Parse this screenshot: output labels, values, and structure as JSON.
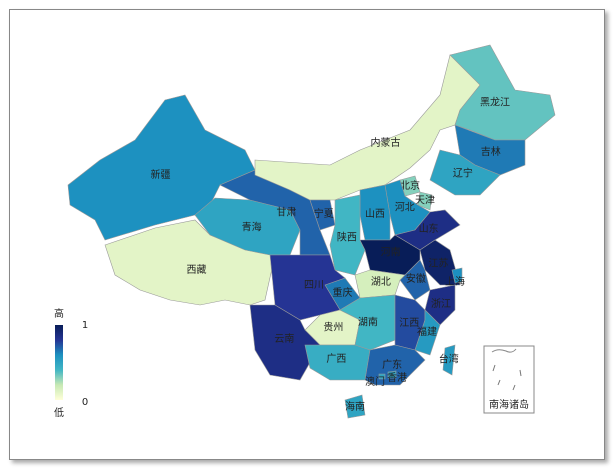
{
  "chart_data": {
    "type": "map",
    "regions": [
      {
        "name": "新疆",
        "value": 0.6
      },
      {
        "name": "西藏",
        "value": 0.1
      },
      {
        "name": "青海",
        "value": 0.5
      },
      {
        "name": "甘肃",
        "value": 0.7
      },
      {
        "name": "内蒙古",
        "value": 0.1
      },
      {
        "name": "黑龙江",
        "value": 0.35
      },
      {
        "name": "吉林",
        "value": 0.65
      },
      {
        "name": "辽宁",
        "value": 0.5
      },
      {
        "name": "北京",
        "value": 0.3
      },
      {
        "name": "天津",
        "value": 0.3
      },
      {
        "name": "河北",
        "value": 0.6
      },
      {
        "name": "山西",
        "value": 0.6
      },
      {
        "name": "宁夏",
        "value": 0.7
      },
      {
        "name": "陕西",
        "value": 0.4
      },
      {
        "name": "山东",
        "value": 0.85
      },
      {
        "name": "河南",
        "value": 1
      },
      {
        "name": "江苏",
        "value": 0.95
      },
      {
        "name": "上海",
        "value": 0.6
      },
      {
        "name": "安徽",
        "value": 0.7
      },
      {
        "name": "浙江",
        "value": 0.85
      },
      {
        "name": "湖北",
        "value": 0.15
      },
      {
        "name": "重庆",
        "value": 0.65
      },
      {
        "name": "四川",
        "value": 0.8
      },
      {
        "name": "贵州",
        "value": 0.1
      },
      {
        "name": "湖南",
        "value": 0.4
      },
      {
        "name": "江西",
        "value": 0.75
      },
      {
        "name": "福建",
        "value": 0.55
      },
      {
        "name": "云南",
        "value": 0.85
      },
      {
        "name": "广西",
        "value": 0.45
      },
      {
        "name": "广东",
        "value": 0.7
      },
      {
        "name": "海南",
        "value": 0.5
      },
      {
        "name": "台湾",
        "value": 0.55
      },
      {
        "name": "香港",
        "value": 0.5
      },
      {
        "name": "澳门",
        "value": 0.5
      }
    ],
    "visual_map": {
      "min": 0,
      "max": 1,
      "high_label": "高",
      "low_label": "低",
      "colors": [
        "#ffffd9",
        "#c7e9b4",
        "#41b6c4",
        "#1d91c0",
        "#253494",
        "#081d58"
      ]
    },
    "inset_label": "南海诸岛"
  }
}
